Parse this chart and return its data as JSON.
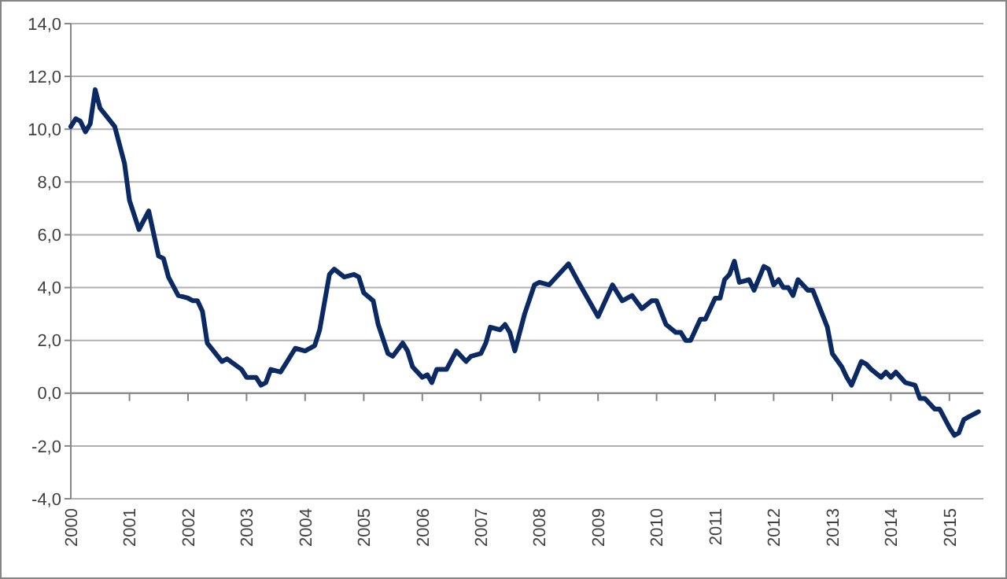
{
  "chart_data": {
    "type": "line",
    "x": [
      "2000-01",
      "2000-02",
      "2000-03",
      "2000-04",
      "2000-05",
      "2000-06",
      "2000-07",
      "2000-10",
      "2000-12",
      "2001-01",
      "2001-03",
      "2001-05",
      "2001-07",
      "2001-08",
      "2001-09",
      "2001-11",
      "2002-01",
      "2002-02",
      "2002-03",
      "2002-04",
      "2002-05",
      "2002-08",
      "2002-09",
      "2002-12",
      "2003-01",
      "2003-03",
      "2003-04",
      "2003-05",
      "2003-06",
      "2003-08",
      "2003-09",
      "2003-11",
      "2004-01",
      "2004-03",
      "2004-04",
      "2004-06",
      "2004-07",
      "2004-09",
      "2004-11",
      "2004-12",
      "2005-01",
      "2005-03",
      "2005-04",
      "2005-06",
      "2005-07",
      "2005-09",
      "2005-10",
      "2005-11",
      "2006-01",
      "2006-02",
      "2006-03",
      "2006-04",
      "2006-06",
      "2006-08",
      "2006-10",
      "2006-11",
      "2007-01",
      "2007-02",
      "2007-03",
      "2007-05",
      "2007-06",
      "2007-07",
      "2007-08",
      "2007-10",
      "2007-12",
      "2008-01",
      "2008-03",
      "2008-05",
      "2008-07",
      "2008-09",
      "2009-01",
      "2009-04",
      "2009-06",
      "2009-08",
      "2009-10",
      "2009-12",
      "2010-01",
      "2010-03",
      "2010-05",
      "2010-06",
      "2010-07",
      "2010-08",
      "2010-10",
      "2010-11",
      "2011-01",
      "2011-02",
      "2011-03",
      "2011-04",
      "2011-05",
      "2011-06",
      "2011-08",
      "2011-09",
      "2011-11",
      "2011-12",
      "2012-01",
      "2012-02",
      "2012-03",
      "2012-04",
      "2012-05",
      "2012-06",
      "2012-08",
      "2012-09",
      "2012-12",
      "2013-01",
      "2013-03",
      "2013-04",
      "2013-05",
      "2013-07",
      "2013-08",
      "2013-09",
      "2013-11",
      "2013-12",
      "2014-01",
      "2014-02",
      "2014-04",
      "2014-06",
      "2014-07",
      "2014-08",
      "2014-10",
      "2014-11",
      "2015-01",
      "2015-02",
      "2015-03",
      "2015-04",
      "2015-05",
      "2015-07"
    ],
    "series": [
      {
        "color": "#0b2a63",
        "values": [
          10.1,
          10.4,
          10.3,
          9.9,
          10.2,
          11.5,
          10.8,
          10.1,
          8.7,
          7.3,
          6.2,
          6.9,
          5.2,
          5.1,
          4.4,
          3.7,
          3.6,
          3.5,
          3.5,
          3.1,
          1.9,
          1.2,
          1.3,
          0.9,
          0.6,
          0.6,
          0.3,
          0.4,
          0.9,
          0.8,
          1.1,
          1.7,
          1.6,
          1.8,
          2.4,
          4.5,
          4.7,
          4.4,
          4.5,
          4.4,
          3.8,
          3.5,
          2.6,
          1.5,
          1.4,
          1.9,
          1.6,
          1.0,
          0.6,
          0.7,
          0.4,
          0.9,
          0.9,
          1.6,
          1.2,
          1.4,
          1.5,
          1.9,
          2.5,
          2.4,
          2.6,
          2.3,
          1.6,
          3.0,
          4.1,
          4.2,
          4.1,
          4.5,
          4.9,
          4.2,
          2.9,
          4.1,
          3.5,
          3.7,
          3.2,
          3.5,
          3.5,
          2.6,
          2.3,
          2.3,
          2.0,
          2.0,
          2.8,
          2.8,
          3.6,
          3.6,
          4.3,
          4.5,
          5.0,
          4.2,
          4.3,
          3.9,
          4.8,
          4.7,
          4.1,
          4.3,
          4.0,
          4.0,
          3.7,
          4.3,
          3.9,
          3.9,
          2.5,
          1.5,
          1.0,
          0.6,
          0.3,
          1.2,
          1.1,
          0.9,
          0.6,
          0.8,
          0.6,
          0.8,
          0.4,
          0.3,
          -0.2,
          -0.2,
          -0.6,
          -0.6,
          -1.3,
          -1.6,
          -1.5,
          -1.0,
          -0.9,
          -0.7
        ]
      }
    ],
    "xlim": [
      "2000-01",
      "2015-08"
    ],
    "xticks": [
      {
        "value": "2000-01",
        "label": "2000"
      },
      {
        "value": "2001-01",
        "label": "2001"
      },
      {
        "value": "2002-01",
        "label": "2002"
      },
      {
        "value": "2003-01",
        "label": "2003"
      },
      {
        "value": "2004-01",
        "label": "2004"
      },
      {
        "value": "2005-01",
        "label": "2005"
      },
      {
        "value": "2006-01",
        "label": "2006"
      },
      {
        "value": "2007-01",
        "label": "2007"
      },
      {
        "value": "2008-01",
        "label": "2008"
      },
      {
        "value": "2009-01",
        "label": "2009"
      },
      {
        "value": "2010-01",
        "label": "2010"
      },
      {
        "value": "2011-01",
        "label": "2011"
      },
      {
        "value": "2012-01",
        "label": "2012"
      },
      {
        "value": "2013-01",
        "label": "2013"
      },
      {
        "value": "2014-01",
        "label": "2014"
      },
      {
        "value": "2015-01",
        "label": "2015"
      }
    ],
    "ylim": [
      -4,
      14
    ],
    "yticks": [
      {
        "value": -4,
        "label": "-4,0"
      },
      {
        "value": -2,
        "label": "-2,0"
      },
      {
        "value": 0,
        "label": "0,0"
      },
      {
        "value": 2,
        "label": "2,0"
      },
      {
        "value": 4,
        "label": "4,0"
      },
      {
        "value": 6,
        "label": "6,0"
      },
      {
        "value": 8,
        "label": "8,0"
      },
      {
        "value": 10,
        "label": "10,0"
      },
      {
        "value": 12,
        "label": "12,0"
      },
      {
        "value": 14,
        "label": "14,0"
      }
    ],
    "grid": "y",
    "marker": "none",
    "line_style": "solid"
  }
}
